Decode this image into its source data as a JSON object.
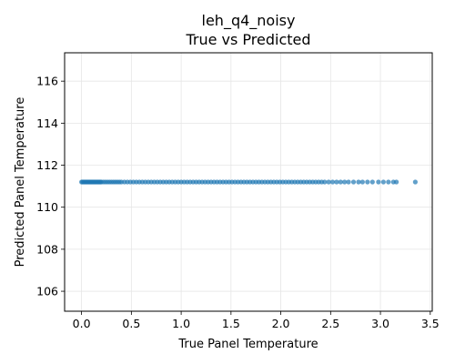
{
  "chart_data": {
    "type": "scatter",
    "title": "leh_q4_noisy",
    "subtitle": "True vs Predicted",
    "xlabel": "True Panel Temperature",
    "ylabel": "Predicted Panel Temperature",
    "xlim": [
      -0.17,
      3.52
    ],
    "ylim": [
      105.05,
      117.35
    ],
    "xticks": [
      0.0,
      0.5,
      1.0,
      1.5,
      2.0,
      2.5,
      3.0,
      3.5
    ],
    "xtick_labels": [
      "0.0",
      "0.5",
      "1.0",
      "1.5",
      "2.0",
      "2.5",
      "3.0",
      "3.5"
    ],
    "yticks": [
      106,
      108,
      110,
      112,
      114,
      116
    ],
    "ytick_labels": [
      "106",
      "108",
      "110",
      "112",
      "114",
      "116"
    ],
    "grid": true,
    "point_color": "#1f77b4",
    "series": [
      {
        "x": [
          0.0,
          0.01,
          0.02,
          0.03,
          0.04,
          0.05,
          0.06,
          0.07,
          0.08,
          0.09,
          0.1,
          0.11,
          0.12,
          0.13,
          0.14,
          0.15,
          0.16,
          0.17,
          0.18,
          0.19,
          0.2,
          0.22,
          0.24,
          0.26,
          0.28,
          0.3,
          0.32,
          0.34,
          0.36,
          0.38,
          0.4,
          0.43,
          0.46,
          0.49,
          0.52,
          0.55,
          0.58,
          0.61,
          0.64,
          0.67,
          0.7,
          0.73,
          0.76,
          0.79,
          0.82,
          0.85,
          0.88,
          0.91,
          0.94,
          0.97,
          1.0,
          1.03,
          1.06,
          1.09,
          1.12,
          1.15,
          1.18,
          1.21,
          1.24,
          1.27,
          1.3,
          1.33,
          1.36,
          1.39,
          1.42,
          1.45,
          1.48,
          1.51,
          1.54,
          1.57,
          1.6,
          1.63,
          1.66,
          1.69,
          1.72,
          1.75,
          1.78,
          1.81,
          1.84,
          1.87,
          1.9,
          1.93,
          1.96,
          1.99,
          2.02,
          2.05,
          2.08,
          2.11,
          2.14,
          2.17,
          2.2,
          2.23,
          2.26,
          2.29,
          2.32,
          2.35,
          2.38,
          2.41,
          2.44,
          2.48,
          2.52,
          2.56,
          2.6,
          2.64,
          2.68,
          2.73,
          2.78,
          2.82,
          2.87,
          2.92,
          2.98,
          3.03,
          3.08,
          3.13,
          3.16,
          3.35
        ],
        "y": [
          111.2,
          111.2,
          111.2,
          111.2,
          111.2,
          111.2,
          111.2,
          111.2,
          111.2,
          111.2,
          111.2,
          111.2,
          111.2,
          111.2,
          111.2,
          111.2,
          111.2,
          111.2,
          111.2,
          111.2,
          111.2,
          111.2,
          111.2,
          111.2,
          111.2,
          111.2,
          111.2,
          111.2,
          111.2,
          111.2,
          111.2,
          111.2,
          111.2,
          111.2,
          111.2,
          111.2,
          111.2,
          111.2,
          111.2,
          111.2,
          111.2,
          111.2,
          111.2,
          111.2,
          111.2,
          111.2,
          111.2,
          111.2,
          111.2,
          111.2,
          111.2,
          111.2,
          111.2,
          111.2,
          111.2,
          111.2,
          111.2,
          111.2,
          111.2,
          111.2,
          111.2,
          111.2,
          111.2,
          111.2,
          111.2,
          111.2,
          111.2,
          111.2,
          111.2,
          111.2,
          111.2,
          111.2,
          111.2,
          111.2,
          111.2,
          111.2,
          111.2,
          111.2,
          111.2,
          111.2,
          111.2,
          111.2,
          111.2,
          111.2,
          111.2,
          111.2,
          111.2,
          111.2,
          111.2,
          111.2,
          111.2,
          111.2,
          111.2,
          111.2,
          111.2,
          111.2,
          111.2,
          111.2,
          111.2,
          111.2,
          111.2,
          111.2,
          111.2,
          111.2,
          111.2,
          111.2,
          111.2,
          111.2,
          111.2,
          111.2,
          111.2,
          111.2,
          111.2,
          111.2,
          111.2,
          111.2
        ]
      }
    ]
  }
}
